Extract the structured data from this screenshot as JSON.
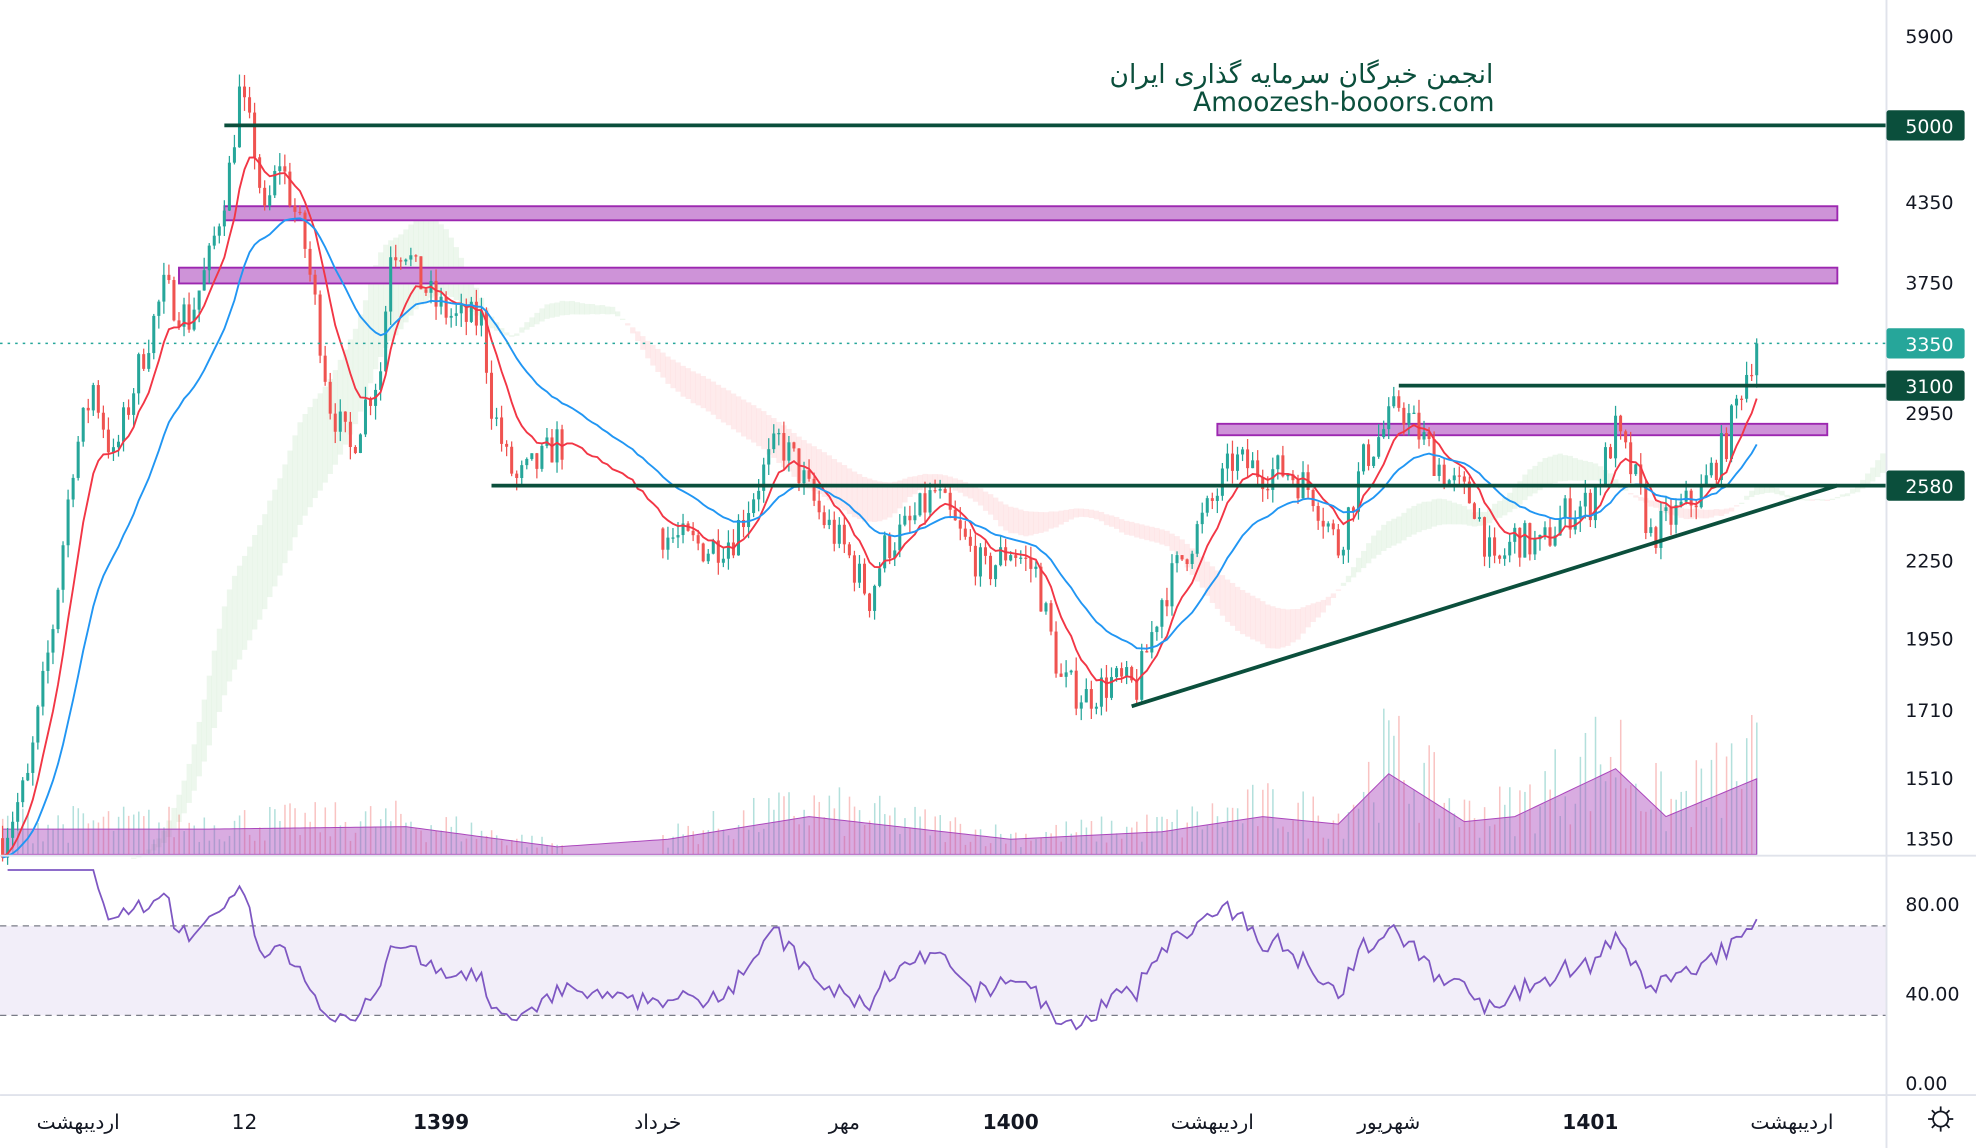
{
  "watermark": {
    "line1": "انجمن خبرگان سرمایه گذاری ایران",
    "line2": "Amoozesh-booors.com",
    "color": "#0b4f3c"
  },
  "chart_data": {
    "type": "candlestick",
    "title": "",
    "price_scale": "log",
    "ylim": [
      1350,
      5900
    ],
    "price_axis_labels": [
      "5900",
      "4350",
      "3750",
      "2950",
      "2250",
      "1950",
      "1710",
      "1510",
      "1350"
    ],
    "price_axis_values": [
      5900,
      4350,
      3750,
      2950,
      2250,
      1950,
      1710,
      1510,
      1350
    ],
    "last_price": {
      "value": 3350,
      "label": "3350",
      "color": "#26a69a"
    },
    "horizontal_levels": [
      {
        "value": 5000,
        "label": "5000",
        "from_bar": 44
      },
      {
        "value": 3100,
        "label": "3100",
        "from_bar": 277
      },
      {
        "value": 2580,
        "label": "2580",
        "from_bar": 97
      }
    ],
    "zones": [
      {
        "low": 4200,
        "high": 4310,
        "from_bar": 44,
        "to_bar": 364
      },
      {
        "low": 3740,
        "high": 3850,
        "from_bar": 35,
        "to_bar": 364
      },
      {
        "low": 2830,
        "high": 2890,
        "from_bar": 241,
        "to_bar": 362
      }
    ],
    "trendline": {
      "from": {
        "bar": 224,
        "price": 1720
      },
      "to": {
        "bar": 364,
        "price": 2580
      }
    },
    "close_anchors": {
      "bar": [
        0,
        5,
        10,
        14,
        18,
        22,
        27,
        32,
        37,
        41,
        45,
        47,
        50,
        52,
        55,
        60,
        62,
        65,
        69,
        72,
        75,
        77,
        80,
        82,
        86,
        90,
        95,
        97,
        100,
        102,
        107,
        110,
        132,
        140,
        145,
        150,
        154,
        157,
        162,
        167,
        172,
        175,
        180,
        185,
        190,
        195,
        200,
        205,
        210,
        215,
        220,
        225,
        230,
        235,
        240,
        244,
        250,
        255,
        260,
        265,
        270,
        275,
        277,
        282,
        287,
        292,
        296,
        300,
        305,
        310,
        315,
        320,
        324,
        327,
        332,
        337,
        342,
        345,
        348
      ],
      "close": [
        1350,
        1500,
        2000,
        2700,
        3100,
        2700,
        3200,
        3700,
        3500,
        3900,
        4600,
        5300,
        4800,
        4200,
        4700,
        4000,
        3600,
        3000,
        2750,
        3000,
        3200,
        4000,
        4000,
        3800,
        3600,
        3500,
        3500,
        3000,
        2700,
        2600,
        2700,
        2800,
        2350,
        2300,
        2350,
        2600,
        2800,
        2700,
        2450,
        2300,
        2100,
        2300,
        2400,
        2550,
        2350,
        2200,
        2300,
        2200,
        1800,
        1750,
        1800,
        1780,
        2100,
        2300,
        2500,
        2700,
        2650,
        2650,
        2550,
        2300,
        2700,
        2900,
        3000,
        2800,
        2600,
        2500,
        2200,
        2350,
        2300,
        2450,
        2500,
        2850,
        2600,
        2350,
        2450,
        2550,
        2800,
        3100,
        3350
      ]
    },
    "gap_bars": [
      111,
      131
    ],
    "volume_anchors": {
      "bar": [
        0,
        40,
        80,
        110,
        132,
        160,
        200,
        230,
        250,
        265,
        275,
        290,
        300,
        320,
        330,
        348
      ],
      "value": [
        1.0,
        1.0,
        1.1,
        0.3,
        0.6,
        1.5,
        0.6,
        0.9,
        1.5,
        1.2,
        3.2,
        1.3,
        1.5,
        3.4,
        1.5,
        3.0
      ]
    },
    "moving_averages": [
      {
        "name": "fast",
        "period": 9,
        "color": "#f23645"
      },
      {
        "name": "slow",
        "period": 26,
        "color": "#2196f3"
      }
    ],
    "rsi": {
      "period": 14,
      "ylim": [
        0,
        100
      ],
      "axis_labels": [
        "80.00",
        "40.00",
        "0.00"
      ],
      "axis_values": [
        80,
        40,
        0
      ],
      "upper_band": 70,
      "lower_band": 30,
      "color": "#7e57c2"
    },
    "time_labels": [
      "اردیبهشت",
      "12",
      "1399",
      "خرداد",
      "مهر",
      "1400",
      "اردیبهشت",
      "شهریور",
      "1401",
      "اردیبهشت"
    ],
    "time_label_bars": [
      15,
      48,
      87,
      130,
      167,
      200,
      240,
      275,
      315,
      355
    ],
    "up_color": "#26a69a",
    "down_color": "#ef5350",
    "level_color": "#0b4f3c",
    "zone_color": "#ce93d8"
  },
  "icons": {
    "settings": "gear-icon"
  }
}
